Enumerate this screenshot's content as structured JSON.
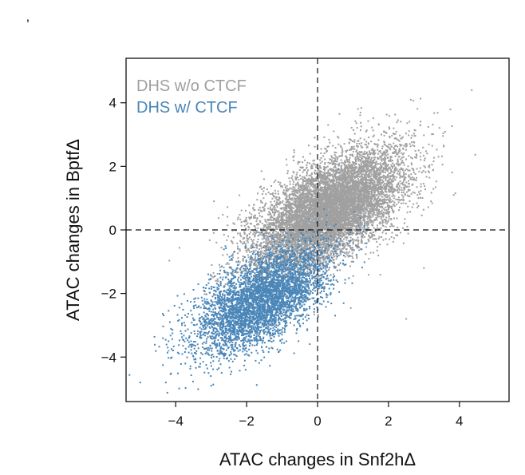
{
  "corner_mark": "’",
  "chart_data": {
    "type": "scatter",
    "xlabel": "ATAC changes in Snf2hΔ",
    "ylabel": "ATAC changes in BptfΔ",
    "xlim": [
      -5.4,
      5.4
    ],
    "ylim": [
      -5.4,
      5.4
    ],
    "xticks": [
      -4,
      -2,
      0,
      2,
      4
    ],
    "yticks": [
      -4,
      -2,
      0,
      2,
      4
    ],
    "xtick_labels": [
      "−4",
      "−2",
      "0",
      "2",
      "4"
    ],
    "ytick_labels": [
      "−4",
      "−2",
      "0",
      "2",
      "4"
    ],
    "reference_lines": {
      "x": 0,
      "y": 0,
      "style": "dashed"
    },
    "legend_position": "top-left",
    "series": [
      {
        "name": "DHS w/o CTCF",
        "color": "#a0a0a0",
        "approx_points": 9000,
        "center": [
          0.3,
          0.6
        ],
        "spread": [
          1.05,
          0.95
        ],
        "correlation": 0.6,
        "sample_points": [
          [
            1.8,
            3.0
          ],
          [
            3.2,
            0.9
          ],
          [
            3.0,
            -1.2
          ],
          [
            -4.2,
            -3.8
          ],
          [
            2.5,
            -2.8
          ],
          [
            0.3,
            3.3
          ]
        ]
      },
      {
        "name": "DHS w/ CTCF",
        "color": "#4a86b8",
        "approx_points": 4500,
        "center": [
          -1.6,
          -2.2
        ],
        "spread": [
          0.95,
          0.85
        ],
        "correlation": 0.6,
        "sample_points": [
          [
            -5.0,
            -4.8
          ],
          [
            -4.2,
            -3.5
          ],
          [
            -3.0,
            -4.9
          ],
          [
            0.6,
            1.9
          ]
        ]
      }
    ]
  }
}
